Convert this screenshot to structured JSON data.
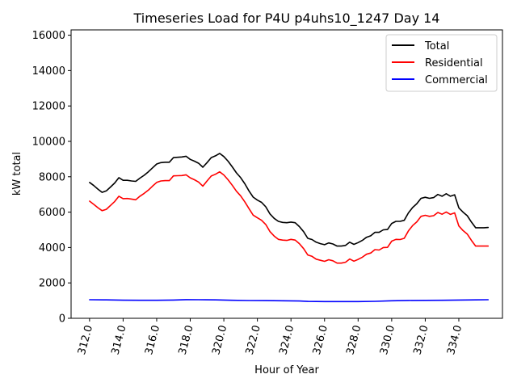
{
  "chart_data": {
    "type": "line",
    "title": "Timeseries Load for P4U p4uhs10_1247  Day 14",
    "xlabel": "Hour of Year",
    "ylabel": "kW total",
    "xlim": [
      310.9,
      336.6
    ],
    "ylim": [
      0,
      16300
    ],
    "x_ticks": [
      312,
      314,
      316,
      318,
      320,
      322,
      324,
      326,
      328,
      330,
      332,
      334
    ],
    "x_tick_labels": [
      "312.0",
      "314.0",
      "316.0",
      "318.0",
      "320.0",
      "322.0",
      "324.0",
      "326.0",
      "328.0",
      "330.0",
      "332.0",
      "334.0"
    ],
    "y_ticks": [
      0,
      2000,
      4000,
      6000,
      8000,
      10000,
      12000,
      14000,
      16000
    ],
    "y_tick_labels": [
      "0",
      "2000",
      "4000",
      "6000",
      "8000",
      "10000",
      "12000",
      "14000",
      "16000"
    ],
    "grid": false,
    "legend_position": "top-right",
    "series": [
      {
        "name": "Total",
        "color": "#000000",
        "points": [
          [
            312.0,
            7680
          ],
          [
            312.25,
            7500
          ],
          [
            312.5,
            7300
          ],
          [
            312.75,
            7120
          ],
          [
            313.0,
            7200
          ],
          [
            313.25,
            7420
          ],
          [
            313.5,
            7650
          ],
          [
            313.75,
            7950
          ],
          [
            314.0,
            7800
          ],
          [
            314.25,
            7800
          ],
          [
            314.5,
            7760
          ],
          [
            314.75,
            7740
          ],
          [
            315.0,
            7920
          ],
          [
            315.25,
            8080
          ],
          [
            315.5,
            8280
          ],
          [
            315.75,
            8500
          ],
          [
            316.0,
            8720
          ],
          [
            316.25,
            8800
          ],
          [
            316.5,
            8820
          ],
          [
            316.75,
            8820
          ],
          [
            317.0,
            9080
          ],
          [
            317.25,
            9100
          ],
          [
            317.5,
            9120
          ],
          [
            317.75,
            9160
          ],
          [
            318.0,
            8980
          ],
          [
            318.25,
            8880
          ],
          [
            318.5,
            8760
          ],
          [
            318.75,
            8540
          ],
          [
            319.0,
            8800
          ],
          [
            319.25,
            9080
          ],
          [
            319.5,
            9180
          ],
          [
            319.75,
            9320
          ],
          [
            320.0,
            9140
          ],
          [
            320.25,
            8880
          ],
          [
            320.5,
            8560
          ],
          [
            320.75,
            8220
          ],
          [
            321.0,
            7950
          ],
          [
            321.25,
            7600
          ],
          [
            321.5,
            7200
          ],
          [
            321.75,
            6850
          ],
          [
            322.0,
            6680
          ],
          [
            322.25,
            6550
          ],
          [
            322.5,
            6300
          ],
          [
            322.75,
            5900
          ],
          [
            323.0,
            5650
          ],
          [
            323.25,
            5480
          ],
          [
            323.5,
            5420
          ],
          [
            323.75,
            5400
          ],
          [
            324.0,
            5440
          ],
          [
            324.25,
            5400
          ],
          [
            324.5,
            5180
          ],
          [
            324.75,
            4900
          ],
          [
            325.0,
            4520
          ],
          [
            325.25,
            4450
          ],
          [
            325.5,
            4300
          ],
          [
            325.75,
            4220
          ],
          [
            326.0,
            4160
          ],
          [
            326.25,
            4260
          ],
          [
            326.5,
            4200
          ],
          [
            326.75,
            4080
          ],
          [
            327.0,
            4080
          ],
          [
            327.25,
            4120
          ],
          [
            327.5,
            4300
          ],
          [
            327.75,
            4180
          ],
          [
            328.0,
            4280
          ],
          [
            328.25,
            4400
          ],
          [
            328.5,
            4580
          ],
          [
            328.75,
            4660
          ],
          [
            329.0,
            4860
          ],
          [
            329.25,
            4860
          ],
          [
            329.5,
            5000
          ],
          [
            329.75,
            5020
          ],
          [
            330.0,
            5360
          ],
          [
            330.25,
            5480
          ],
          [
            330.5,
            5480
          ],
          [
            330.75,
            5540
          ],
          [
            331.0,
            5960
          ],
          [
            331.25,
            6260
          ],
          [
            331.5,
            6480
          ],
          [
            331.75,
            6780
          ],
          [
            332.0,
            6840
          ],
          [
            332.25,
            6780
          ],
          [
            332.5,
            6820
          ],
          [
            332.75,
            7000
          ],
          [
            333.0,
            6900
          ],
          [
            333.25,
            7040
          ],
          [
            333.5,
            6900
          ],
          [
            333.75,
            6980
          ],
          [
            334.0,
            6240
          ],
          [
            334.25,
            6000
          ],
          [
            334.5,
            5800
          ],
          [
            334.75,
            5440
          ],
          [
            335.0,
            5120
          ],
          [
            335.25,
            5120
          ],
          [
            335.5,
            5120
          ],
          [
            335.75,
            5130
          ]
        ]
      },
      {
        "name": "Residential",
        "color": "#ff0000",
        "points": [
          [
            312.0,
            6620
          ],
          [
            312.25,
            6440
          ],
          [
            312.5,
            6250
          ],
          [
            312.75,
            6080
          ],
          [
            313.0,
            6160
          ],
          [
            313.25,
            6380
          ],
          [
            313.5,
            6600
          ],
          [
            313.75,
            6900
          ],
          [
            314.0,
            6760
          ],
          [
            314.25,
            6770
          ],
          [
            314.5,
            6740
          ],
          [
            314.75,
            6700
          ],
          [
            315.0,
            6900
          ],
          [
            315.25,
            7060
          ],
          [
            315.5,
            7240
          ],
          [
            315.75,
            7470
          ],
          [
            316.0,
            7680
          ],
          [
            316.25,
            7760
          ],
          [
            316.5,
            7780
          ],
          [
            316.75,
            7780
          ],
          [
            317.0,
            8050
          ],
          [
            317.25,
            8060
          ],
          [
            317.5,
            8070
          ],
          [
            317.75,
            8110
          ],
          [
            318.0,
            7940
          ],
          [
            318.25,
            7830
          ],
          [
            318.5,
            7700
          ],
          [
            318.75,
            7470
          ],
          [
            319.0,
            7760
          ],
          [
            319.25,
            8040
          ],
          [
            319.5,
            8140
          ],
          [
            319.75,
            8280
          ],
          [
            320.0,
            8100
          ],
          [
            320.25,
            7830
          ],
          [
            320.5,
            7520
          ],
          [
            320.75,
            7180
          ],
          [
            321.0,
            6920
          ],
          [
            321.25,
            6580
          ],
          [
            321.5,
            6200
          ],
          [
            321.75,
            5830
          ],
          [
            322.0,
            5680
          ],
          [
            322.25,
            5540
          ],
          [
            322.5,
            5300
          ],
          [
            322.75,
            4900
          ],
          [
            323.0,
            4650
          ],
          [
            323.25,
            4460
          ],
          [
            323.5,
            4420
          ],
          [
            323.75,
            4400
          ],
          [
            324.0,
            4460
          ],
          [
            324.25,
            4420
          ],
          [
            324.5,
            4220
          ],
          [
            324.75,
            3940
          ],
          [
            325.0,
            3580
          ],
          [
            325.25,
            3500
          ],
          [
            325.5,
            3340
          ],
          [
            325.75,
            3280
          ],
          [
            326.0,
            3220
          ],
          [
            326.25,
            3310
          ],
          [
            326.5,
            3250
          ],
          [
            326.75,
            3120
          ],
          [
            327.0,
            3120
          ],
          [
            327.25,
            3170
          ],
          [
            327.5,
            3350
          ],
          [
            327.75,
            3230
          ],
          [
            328.0,
            3330
          ],
          [
            328.25,
            3450
          ],
          [
            328.5,
            3620
          ],
          [
            328.75,
            3690
          ],
          [
            329.0,
            3880
          ],
          [
            329.25,
            3860
          ],
          [
            329.5,
            4000
          ],
          [
            329.75,
            4010
          ],
          [
            330.0,
            4360
          ],
          [
            330.25,
            4460
          ],
          [
            330.5,
            4450
          ],
          [
            330.75,
            4520
          ],
          [
            331.0,
            4940
          ],
          [
            331.25,
            5240
          ],
          [
            331.5,
            5450
          ],
          [
            331.75,
            5760
          ],
          [
            332.0,
            5820
          ],
          [
            332.25,
            5760
          ],
          [
            332.5,
            5800
          ],
          [
            332.75,
            5980
          ],
          [
            333.0,
            5880
          ],
          [
            333.25,
            6010
          ],
          [
            333.5,
            5870
          ],
          [
            333.75,
            5960
          ],
          [
            334.0,
            5220
          ],
          [
            334.25,
            4960
          ],
          [
            334.5,
            4760
          ],
          [
            334.75,
            4400
          ],
          [
            335.0,
            4080
          ],
          [
            335.25,
            4080
          ],
          [
            335.5,
            4080
          ],
          [
            335.75,
            4080
          ]
        ]
      },
      {
        "name": "Commercial",
        "color": "#0000ff",
        "points": [
          [
            312.0,
            1050
          ],
          [
            313.0,
            1040
          ],
          [
            314.0,
            1025
          ],
          [
            315.0,
            1020
          ],
          [
            316.0,
            1020
          ],
          [
            317.0,
            1030
          ],
          [
            317.75,
            1055
          ],
          [
            318.5,
            1050
          ],
          [
            319.5,
            1040
          ],
          [
            320.5,
            1020
          ],
          [
            321.5,
            1005
          ],
          [
            322.5,
            1000
          ],
          [
            323.5,
            990
          ],
          [
            324.5,
            975
          ],
          [
            325.0,
            955
          ],
          [
            326.0,
            945
          ],
          [
            327.0,
            945
          ],
          [
            328.0,
            945
          ],
          [
            329.0,
            960
          ],
          [
            330.0,
            990
          ],
          [
            331.0,
            1010
          ],
          [
            332.0,
            1015
          ],
          [
            333.0,
            1020
          ],
          [
            334.0,
            1030
          ],
          [
            335.0,
            1040
          ],
          [
            335.75,
            1050
          ]
        ]
      }
    ]
  }
}
